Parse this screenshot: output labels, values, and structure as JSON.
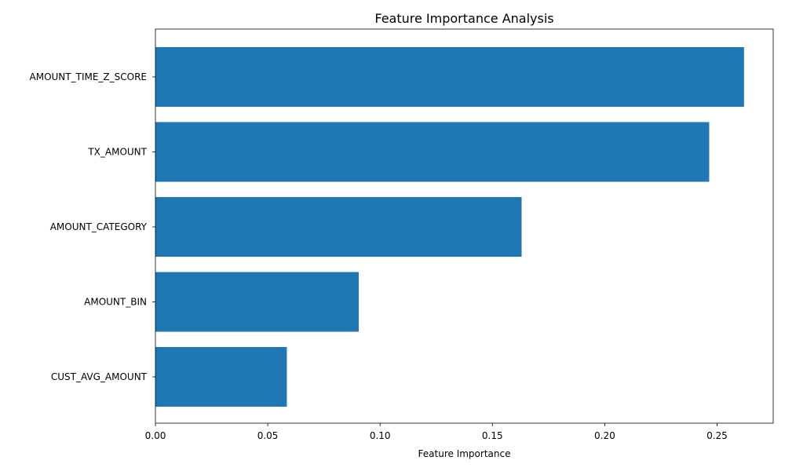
{
  "chart_data": {
    "type": "bar",
    "orientation": "horizontal",
    "title": "Feature Importance Analysis",
    "xlabel": "Feature Importance",
    "ylabel": "",
    "categories": [
      "AMOUNT_TIME_Z_SCORE",
      "TX_AMOUNT",
      "AMOUNT_CATEGORY",
      "AMOUNT_BIN",
      "CUST_AVG_AMOUNT"
    ],
    "values": [
      0.262,
      0.2465,
      0.163,
      0.0905,
      0.0585
    ],
    "xlim": [
      0,
      0.275
    ],
    "xticks": [
      0.0,
      0.05,
      0.1,
      0.15,
      0.2,
      0.25
    ],
    "xtick_labels": [
      "0.00",
      "0.05",
      "0.10",
      "0.15",
      "0.20",
      "0.25"
    ],
    "grid": false,
    "bar_color": "#1f77b4"
  }
}
